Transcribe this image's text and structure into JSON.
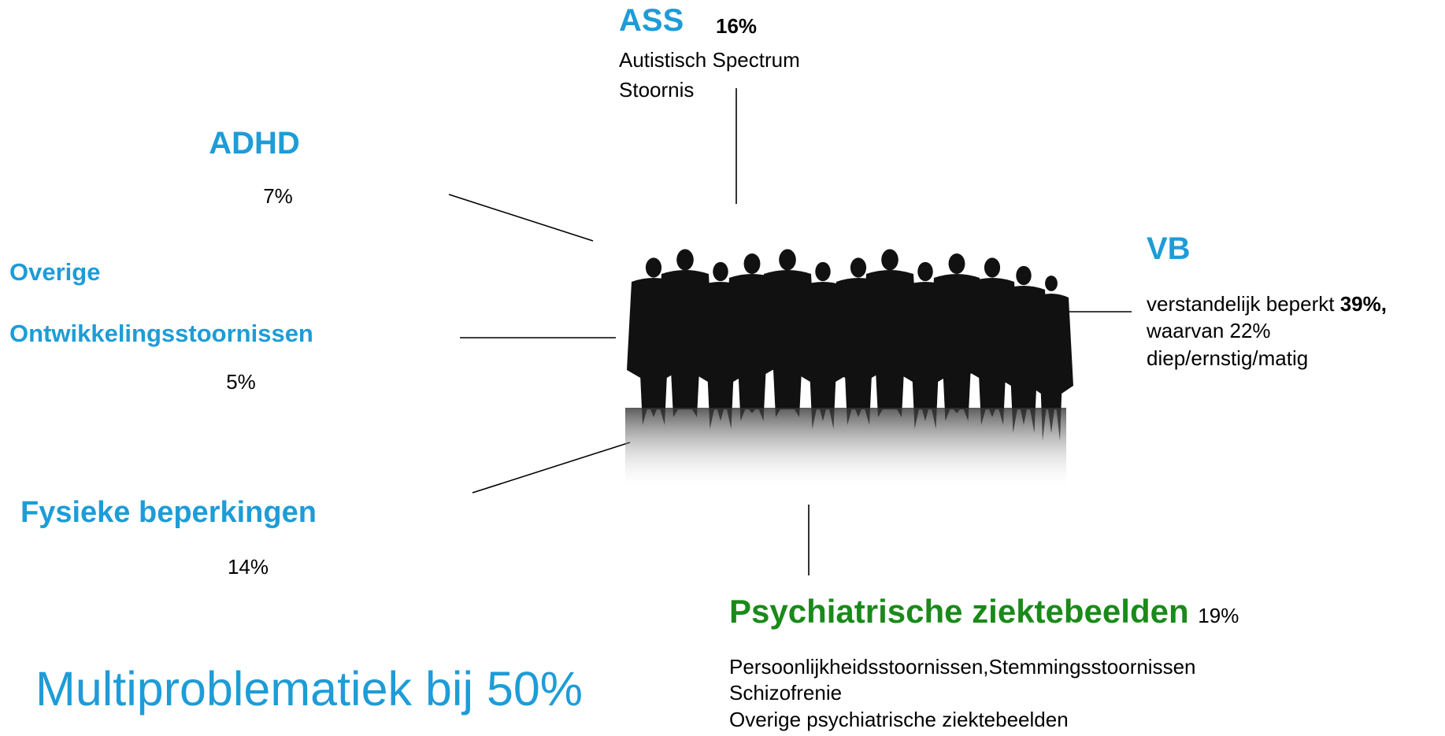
{
  "ass": {
    "title": "ASS",
    "percent": "16%",
    "lines": [
      "Autistisch Spectrum",
      "Stoornis"
    ]
  },
  "adhd": {
    "title": "ADHD",
    "percent": "7%"
  },
  "overige": {
    "title_lines": [
      "Overige",
      "Ontwikkelingsstoornissen"
    ],
    "percent": "5%"
  },
  "fysiek": {
    "title": "Fysieke beperkingen",
    "percent": "14%"
  },
  "vb": {
    "title": "VB",
    "line1": "verstandelijk beperkt",
    "line1_bold": "39%,",
    "lines": [
      "waarvan 22%",
      "diep/ernstig/matig"
    ]
  },
  "psych": {
    "title": "Psychiatrische ziektebeelden",
    "percent": "19%",
    "lines": [
      "Persoonlijkheidsstoornissen,Stemmingsstoornissen",
      "Schizofrenie",
      "Overige psychiatrische ziektebeelden"
    ]
  },
  "footer": {
    "text": "Multiproblematiek bij 50%"
  }
}
